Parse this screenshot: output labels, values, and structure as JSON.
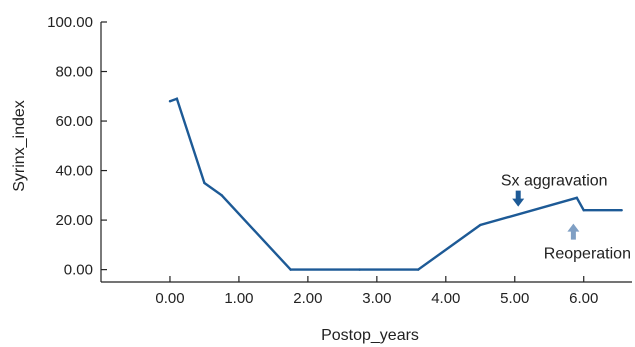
{
  "chart_data": {
    "type": "line",
    "title": "",
    "xlabel": "Postop_years",
    "ylabel": "Syrinx_index",
    "xlim": [
      -1.0,
      6.7
    ],
    "ylim": [
      -5,
      100
    ],
    "x_ticks": [
      {
        "value": 0,
        "label": "0.00"
      },
      {
        "value": 1,
        "label": "1.00"
      },
      {
        "value": 2,
        "label": "2.00"
      },
      {
        "value": 3,
        "label": "3.00"
      },
      {
        "value": 4,
        "label": "4.00"
      },
      {
        "value": 5,
        "label": "5.00"
      },
      {
        "value": 6,
        "label": "6.00"
      }
    ],
    "y_ticks": [
      {
        "value": 0,
        "label": "0.00"
      },
      {
        "value": 20,
        "label": "20.00"
      },
      {
        "value": 40,
        "label": "40.00"
      },
      {
        "value": 60,
        "label": "60.00"
      },
      {
        "value": 80,
        "label": "80.00"
      },
      {
        "value": 100,
        "label": "100.00"
      }
    ],
    "grid": false,
    "line_color": "#1d5a96",
    "series": [
      {
        "x": [
          0.0,
          0.1,
          0.5,
          0.75,
          1.75,
          2.75,
          3.6,
          4.5,
          5.9,
          6.0,
          6.55
        ],
        "y": [
          68,
          69,
          35,
          30,
          0,
          0,
          0,
          18,
          29,
          24,
          24
        ]
      }
    ],
    "annotations": [
      {
        "text": "Sx aggravation",
        "x": 5.05,
        "y": 23,
        "arrow": "down",
        "color": "#1d5a96"
      },
      {
        "text": "Reoperation",
        "x": 5.85,
        "y": 21,
        "arrow": "up",
        "color": "#7f9fc4"
      }
    ]
  }
}
